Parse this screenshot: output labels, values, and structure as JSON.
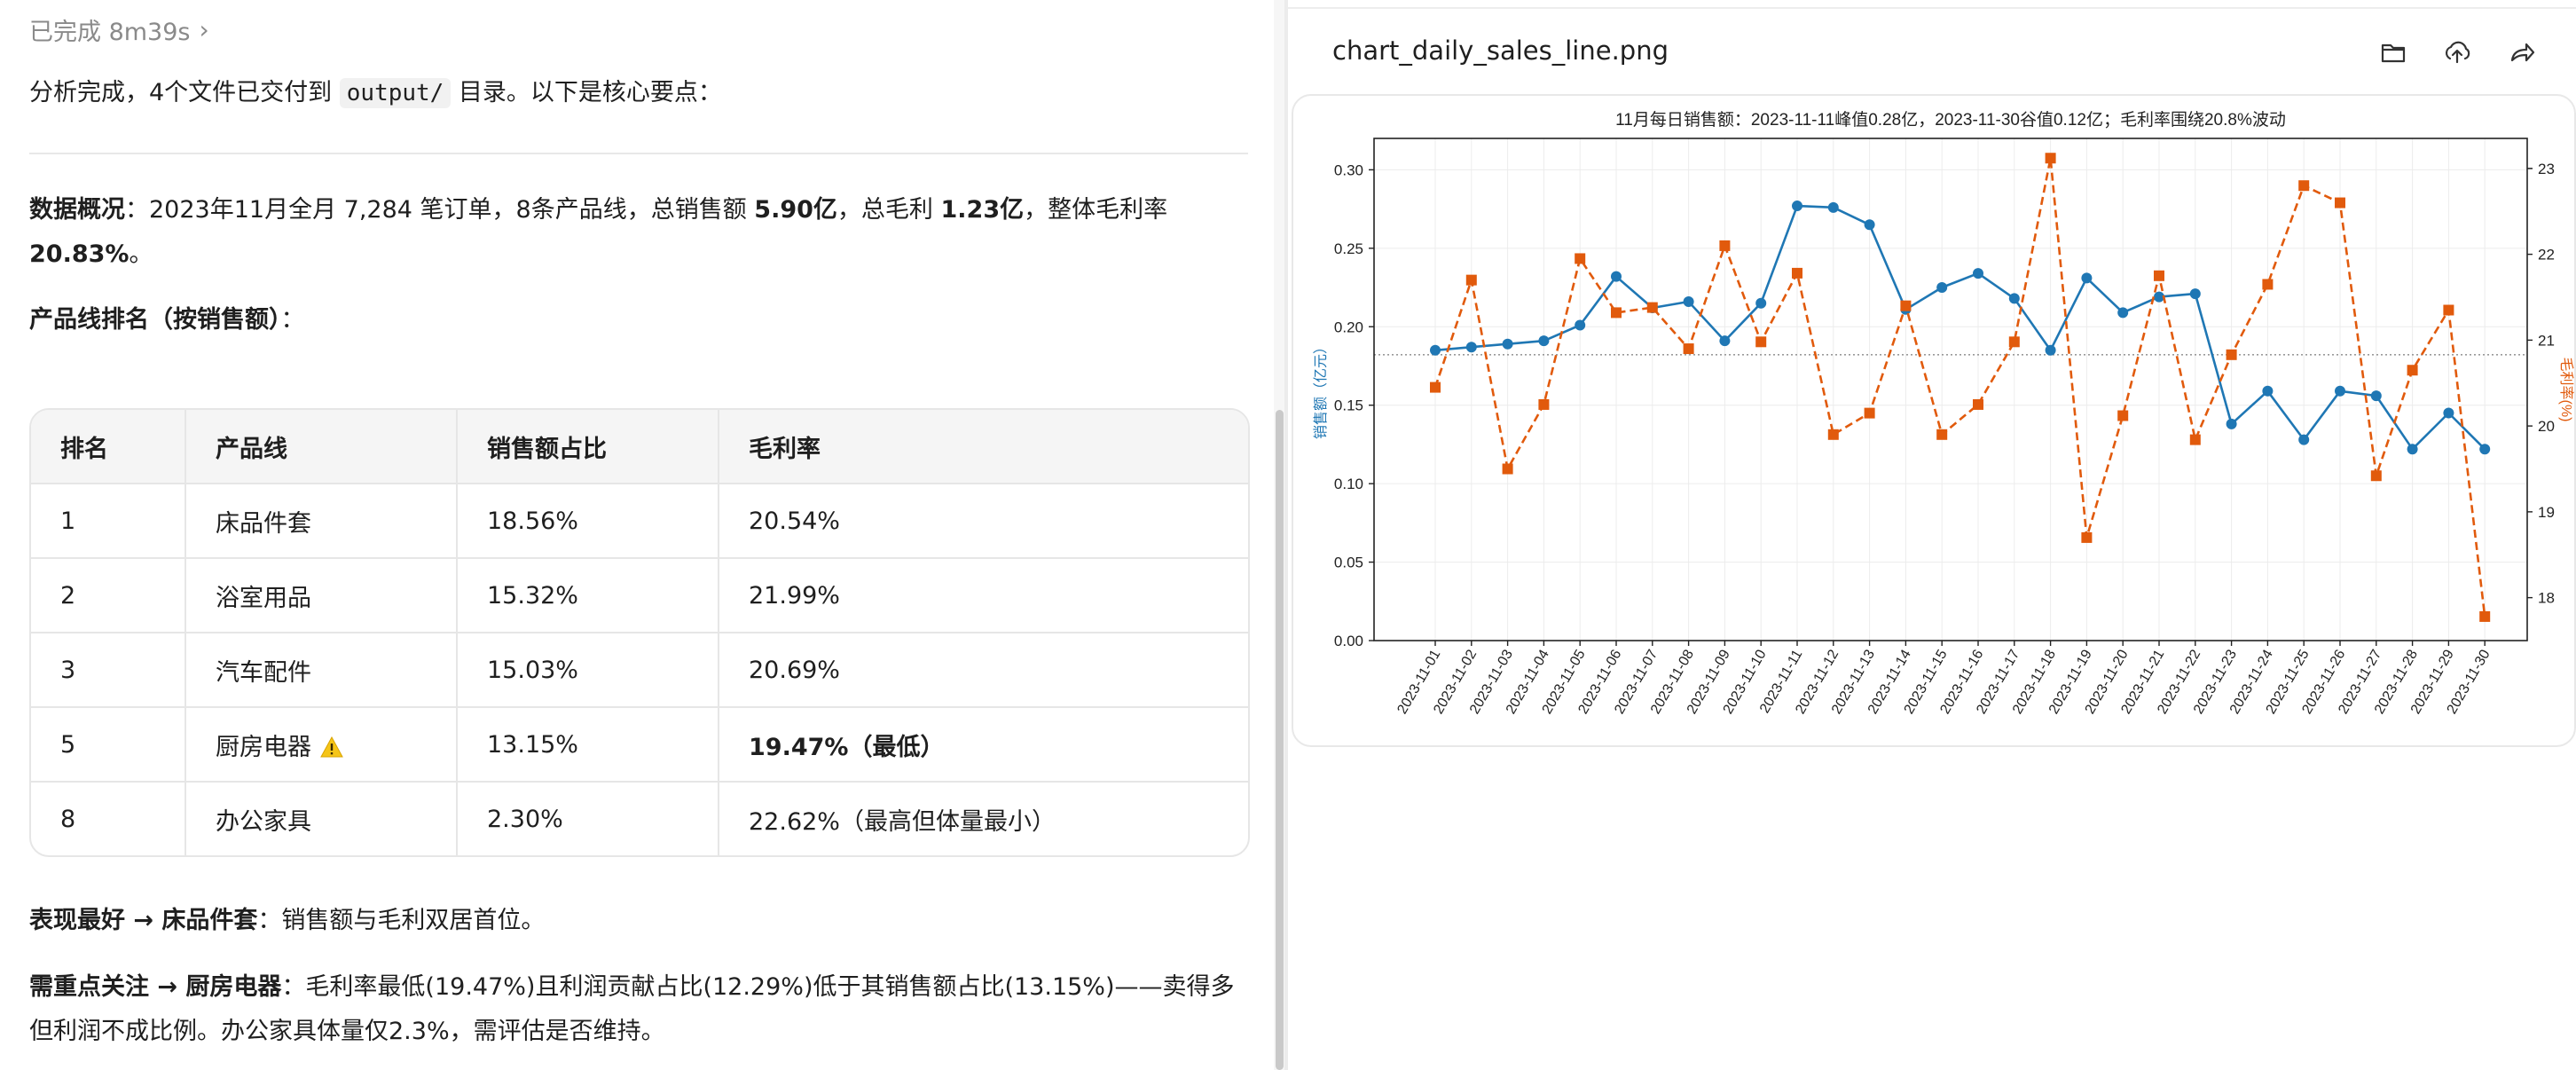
{
  "chat": {
    "status": "已完成 8m39s",
    "intro_before": "分析完成，4个文件已交付到 ",
    "intro_code": "output/",
    "intro_after": " 目录。以下是核心要点：",
    "overview_label": "数据概况",
    "overview_text1": "：2023年11月全月 7,284 笔订单，8条产品线，总销售额 ",
    "overview_sales": "5.90亿",
    "overview_text2": "，总毛利 ",
    "overview_profit": "1.23亿",
    "overview_text3": "，整体毛利率",
    "overview_margin": "20.83%",
    "overview_end": "。",
    "ranking_heading": "产品线排名（按销售额）",
    "ranking_colon": "：",
    "table": {
      "headers": [
        "排名",
        "产品线",
        "销售额占比",
        "毛利率"
      ],
      "rows": [
        [
          "1",
          "床品件套",
          "18.56%",
          "20.54%"
        ],
        [
          "2",
          "浴室用品",
          "15.32%",
          "21.99%"
        ],
        [
          "3",
          "汽车配件",
          "15.03%",
          "20.69%"
        ],
        [
          "5",
          "厨房电器",
          "13.15%",
          "19.47%（最低）"
        ],
        [
          "8",
          "办公家具",
          "2.30%",
          "22.62%（最高但体量最小）"
        ]
      ]
    },
    "best_label": "表现最好 → 床品件套",
    "best_text": "：销售额与毛利双居首位。",
    "focus_label": "需重点关注 → 厨房电器",
    "focus_line1": "：毛利率最低(19.47%)且利润贡献占比(12.29%)低于其销售额占比(13.15%)——卖得多",
    "focus_line2": "但利润不成比例。办公家具体量仅2.3%，需评估是否维持。"
  },
  "preview": {
    "filename": "chart_daily_sales_line.png",
    "icons": [
      "folder-icon",
      "upload-icon",
      "share-icon"
    ]
  },
  "colors": {
    "blue": "#1f77b4",
    "orange": "#e15a0c",
    "ref_line": "#9a9a9a"
  },
  "chart_data": {
    "type": "line",
    "title": "11月每日销售额：2023-11-11峰值0.28亿，2023-11-30谷值0.12亿；毛利率围绕20.8%波动",
    "ylabel": "销售额（亿元）",
    "y2label": "毛利率(%)",
    "ylim": [
      0,
      0.32
    ],
    "y2lim": [
      17.5,
      23.35
    ],
    "yticks": [
      "0.00",
      "0.05",
      "0.10",
      "0.15",
      "0.20",
      "0.25",
      "0.30"
    ],
    "y2ticks": [
      "18",
      "19",
      "20",
      "21",
      "22",
      "23"
    ],
    "grid": true,
    "reference_line": 20.83,
    "x": [
      "2023-11-01",
      "2023-11-02",
      "2023-11-03",
      "2023-11-04",
      "2023-11-05",
      "2023-11-06",
      "2023-11-07",
      "2023-11-08",
      "2023-11-09",
      "2023-11-10",
      "2023-11-11",
      "2023-11-12",
      "2023-11-13",
      "2023-11-14",
      "2023-11-15",
      "2023-11-16",
      "2023-11-17",
      "2023-11-18",
      "2023-11-19",
      "2023-11-20",
      "2023-11-21",
      "2023-11-22",
      "2023-11-23",
      "2023-11-24",
      "2023-11-25",
      "2023-11-26",
      "2023-11-27",
      "2023-11-28",
      "2023-11-29",
      "2023-11-30"
    ],
    "series": [
      {
        "name": "销售额",
        "axis": "left",
        "style": "solid-circle",
        "values": [
          0.185,
          0.187,
          0.189,
          0.191,
          0.201,
          0.232,
          0.212,
          0.216,
          0.191,
          0.215,
          0.277,
          0.276,
          0.265,
          0.211,
          0.225,
          0.234,
          0.218,
          0.185,
          0.231,
          0.209,
          0.219,
          0.221,
          0.138,
          0.159,
          0.128,
          0.159,
          0.156,
          0.122,
          0.145,
          0.122
        ]
      },
      {
        "name": "毛利率",
        "axis": "right",
        "style": "dashed-square",
        "values": [
          20.45,
          21.7,
          19.5,
          20.25,
          21.95,
          21.32,
          21.38,
          20.9,
          22.1,
          20.98,
          21.78,
          19.9,
          20.15,
          21.4,
          19.9,
          20.25,
          20.98,
          23.12,
          18.7,
          20.12,
          21.75,
          19.84,
          20.83,
          21.65,
          22.8,
          22.6,
          19.42,
          20.65,
          21.35,
          17.78
        ]
      }
    ]
  }
}
